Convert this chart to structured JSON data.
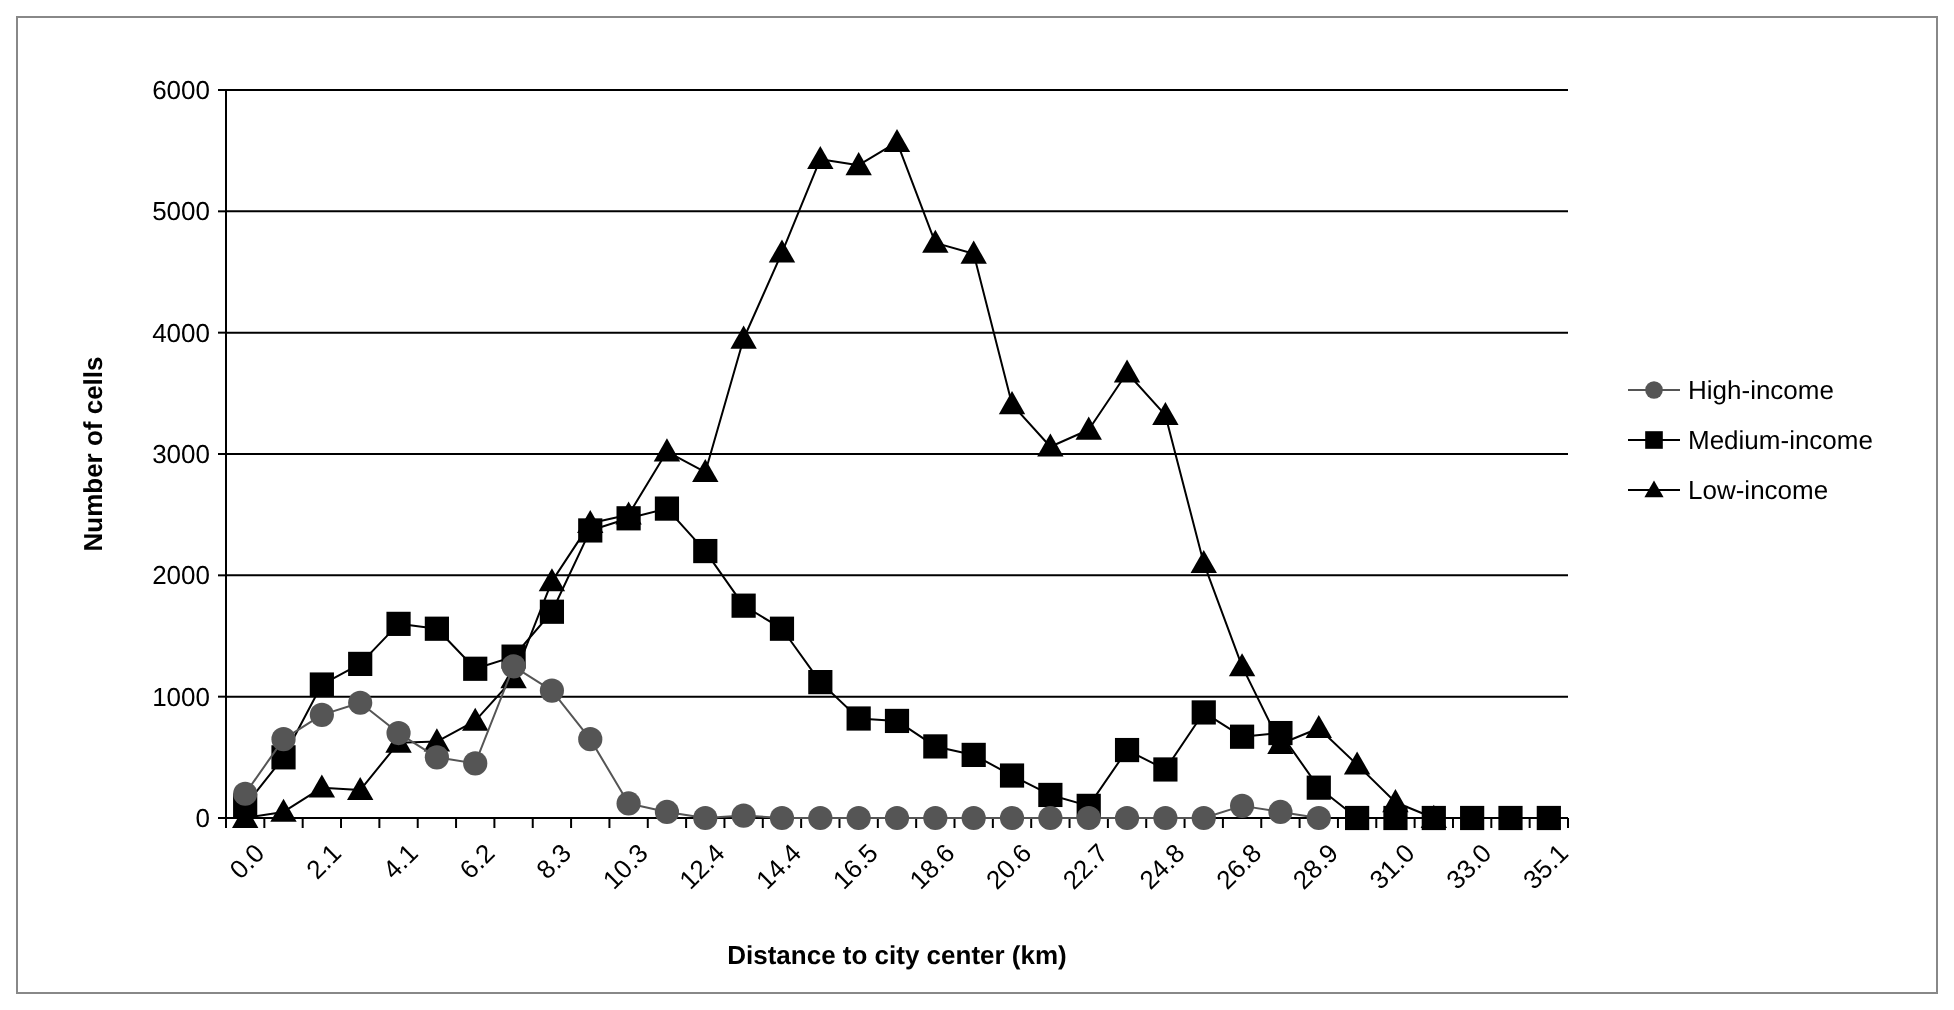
{
  "chart_data": {
    "type": "line",
    "xlabel": "Distance to city center (km)",
    "ylabel": "Number of cells",
    "categories": [
      "0.0",
      null,
      "2.1",
      null,
      "4.1",
      null,
      "6.2",
      null,
      "8.3",
      null,
      "10.3",
      null,
      "12.4",
      null,
      "14.4",
      null,
      "16.5",
      null,
      "18.6",
      null,
      "20.6",
      null,
      "22.7",
      null,
      "24.8",
      null,
      "26.8",
      null,
      "28.9",
      null,
      "31.0",
      null,
      "33.0",
      null,
      "35.1"
    ],
    "ylim": [
      0,
      6000
    ],
    "yticks": [
      0,
      1000,
      2000,
      3000,
      4000,
      5000,
      6000
    ],
    "grid": "y",
    "legend": "right",
    "series": [
      {
        "name": "High-income",
        "color": "#555555",
        "marker": "circle",
        "values": [
          200,
          650,
          850,
          950,
          700,
          500,
          450,
          1250,
          1050,
          650,
          120,
          50,
          0,
          20,
          0,
          0,
          0,
          0,
          0,
          0,
          0,
          0,
          0,
          0,
          0,
          0,
          100,
          50,
          0,
          null,
          null,
          null,
          null,
          null,
          null
        ]
      },
      {
        "name": "Medium-income",
        "color": "#000000",
        "marker": "square",
        "values": [
          100,
          500,
          1100,
          1270,
          1600,
          1560,
          1230,
          1330,
          1700,
          2370,
          2470,
          2550,
          2200,
          1750,
          1560,
          1120,
          820,
          800,
          590,
          520,
          350,
          190,
          100,
          560,
          400,
          870,
          670,
          700,
          250,
          0,
          0,
          0,
          0,
          0,
          0
        ]
      },
      {
        "name": "Low-income",
        "color": "#000000",
        "marker": "triangle",
        "values": [
          0,
          50,
          250,
          230,
          620,
          630,
          800,
          1150,
          1950,
          2430,
          2500,
          3020,
          2850,
          3950,
          4660,
          5430,
          5380,
          5570,
          4740,
          4650,
          3410,
          3060,
          3200,
          3670,
          3320,
          2100,
          1250,
          610,
          740,
          440,
          130,
          0,
          null,
          null,
          null
        ]
      }
    ]
  }
}
